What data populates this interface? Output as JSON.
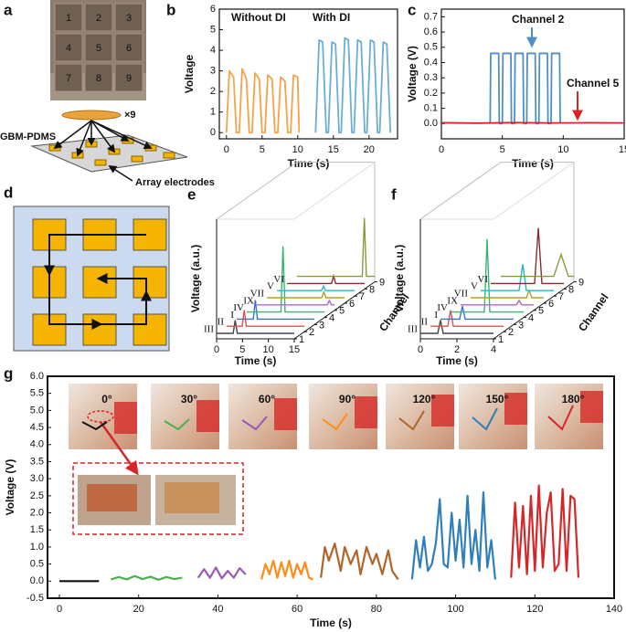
{
  "panel_labels": [
    "a",
    "b",
    "c",
    "d",
    "e",
    "f",
    "g"
  ],
  "panel_a": {
    "cells": [
      "1",
      "2",
      "3",
      "4",
      "5",
      "6",
      "7",
      "8",
      "9"
    ],
    "count": "×9",
    "film": "GBM-PDMS",
    "electrodes": "Array electrodes"
  },
  "chart_data": [
    {
      "type": "line",
      "xlabel": "Time (s)",
      "ylabel": "Voltage",
      "xlim": [
        -1,
        24
      ],
      "xticks": [
        0,
        5,
        10,
        15,
        20
      ],
      "ylim": [
        -0.3,
        6
      ],
      "yticks": [
        0,
        1,
        2,
        3,
        4,
        5,
        6
      ],
      "series": [
        {
          "name": "Without DI",
          "color": "#f5a24a",
          "x": [
            0,
            0.4,
            1.0,
            1.4,
            1.8,
            2.2,
            2.8,
            3.2,
            3.6,
            4.0,
            4.6,
            5.0,
            5.4,
            5.8,
            6.4,
            6.8,
            7.2,
            7.6,
            8.2,
            8.6,
            9.0,
            9.4,
            10.0,
            10.2
          ],
          "values": [
            0,
            3.0,
            2.7,
            0,
            0,
            3.1,
            2.6,
            0,
            0,
            2.9,
            2.6,
            0,
            0,
            2.8,
            2.6,
            0,
            0,
            2.7,
            2.5,
            0,
            0,
            2.8,
            2.7,
            0
          ]
        },
        {
          "name": "With DI",
          "color": "#6aaed6",
          "x": [
            12.5,
            13.0,
            13.5,
            14.0,
            14.3,
            14.8,
            15.3,
            15.8,
            16.1,
            16.6,
            17.1,
            17.6,
            17.9,
            18.4,
            18.9,
            19.4,
            19.7,
            20.2,
            20.7,
            21.2,
            21.5,
            22.0,
            22.5,
            23.0
          ],
          "values": [
            0,
            4.5,
            4.4,
            0,
            0,
            4.4,
            4.3,
            0,
            0,
            4.6,
            4.5,
            0,
            0,
            4.5,
            4.4,
            0,
            0,
            4.5,
            4.4,
            0,
            0,
            4.4,
            4.3,
            0
          ]
        }
      ]
    },
    {
      "type": "line",
      "xlabel": "Time (s)",
      "ylabel": "Voltage (V)",
      "xlim": [
        0,
        15
      ],
      "xticks": [
        0,
        5,
        10,
        15
      ],
      "ylim": [
        -0.1,
        0.75
      ],
      "yticks": [
        {
          "value": 0,
          "label": "0.0"
        },
        0.1,
        0.2,
        0.3,
        0.4,
        0.5,
        0.6,
        0.7
      ],
      "series": [
        {
          "name": "Channel 2",
          "color": "#4f8fc7",
          "x": [
            4.0,
            4.05,
            4.7,
            4.75,
            5.0,
            5.05,
            5.7,
            5.75,
            6.0,
            6.05,
            6.7,
            6.75,
            7.0,
            7.05,
            7.7,
            7.75,
            8.0,
            8.05,
            8.7,
            8.75,
            9.0,
            9.05,
            9.7,
            9.75
          ],
          "values": [
            0,
            0.46,
            0.46,
            0,
            0,
            0.46,
            0.46,
            0,
            0,
            0.46,
            0.46,
            0,
            0,
            0.46,
            0.46,
            0,
            0,
            0.46,
            0.46,
            0,
            0,
            0.46,
            0.46,
            0
          ]
        },
        {
          "name": "Channel 5",
          "color": "#d62728",
          "x": [
            0,
            3,
            6,
            9,
            12,
            15
          ],
          "values": [
            0.005,
            0.003,
            0.006,
            0.004,
            0.005,
            0.004
          ]
        }
      ]
    },
    {
      "type": "waterfall3d",
      "xlabel": "Time (s)",
      "ylabel": "Voltage (a.u.)",
      "zlabel": "Channel",
      "xlim": [
        0,
        15
      ],
      "xticks": [
        0,
        5,
        10,
        15
      ],
      "zticks": [
        1,
        2,
        3,
        4,
        5,
        6,
        7,
        8,
        9
      ],
      "series": [
        {
          "name": "III",
          "color": "#444444",
          "x": [
            0,
            3.2,
            3.6,
            4.0,
            15
          ],
          "values": [
            0,
            0,
            0.9,
            0,
            0
          ]
        },
        {
          "name": "II",
          "color": "#d9534f",
          "x": [
            0,
            3.0,
            3.4,
            3.8,
            15
          ],
          "values": [
            0,
            0,
            1.1,
            0,
            0
          ]
        },
        {
          "name": "I",
          "color": "#3a6fd8",
          "x": [
            0,
            3.2,
            3.6,
            4.0,
            15
          ],
          "values": [
            0,
            0,
            1.3,
            0,
            0
          ]
        },
        {
          "name": "IV",
          "color": "#3cb371",
          "x": [
            0,
            6.6,
            7.0,
            7.4,
            15
          ],
          "values": [
            0,
            0,
            4.5,
            0,
            0
          ]
        },
        {
          "name": "IX",
          "color": "#b266d6",
          "x": [
            0,
            13.6,
            14.0,
            14.4,
            15
          ],
          "values": [
            0,
            0,
            0.3,
            0,
            0
          ]
        },
        {
          "name": "VII",
          "color": "#b5a020",
          "x": [
            0,
            10.6,
            11.0,
            11.4,
            15
          ],
          "values": [
            0,
            0,
            0.4,
            0,
            0
          ]
        },
        {
          "name": "V",
          "color": "#22b8c8",
          "x": [
            0,
            8.6,
            9.0,
            9.4,
            15
          ],
          "values": [
            0,
            0,
            0.3,
            0,
            0
          ]
        },
        {
          "name": "VI",
          "color": "#8b2c2c",
          "x": [
            0,
            8.6,
            9.0,
            9.4,
            15
          ],
          "values": [
            0,
            0,
            0.5,
            0,
            0
          ]
        },
        {
          "name": null,
          "color": "#8a9a3a",
          "x": [
            0,
            12.6,
            13.0,
            13.4,
            15
          ],
          "values": [
            0,
            0,
            4.0,
            0,
            0
          ]
        }
      ]
    },
    {
      "type": "waterfall3d",
      "xlabel": "Time (s)",
      "ylabel": "Voltage (a.u.)",
      "zlabel": "Channel",
      "xlim": [
        0,
        4
      ],
      "xticks": [
        0,
        2,
        4
      ],
      "zticks": [
        1,
        2,
        3,
        4,
        5,
        6,
        7,
        8,
        9
      ],
      "series": [
        {
          "name": "III",
          "color": "#444444",
          "x": [
            0,
            0.95,
            1.1,
            1.25,
            4
          ],
          "values": [
            0,
            0,
            0.9,
            0,
            0
          ]
        },
        {
          "name": "II",
          "color": "#d9534f",
          "x": [
            0,
            0.95,
            1.1,
            1.25,
            4
          ],
          "values": [
            0,
            0,
            1.1,
            0,
            0
          ]
        },
        {
          "name": "I",
          "color": "#3a6fd8",
          "x": [
            0,
            1.05,
            1.2,
            1.35,
            4
          ],
          "values": [
            0,
            0,
            0.9,
            0,
            0
          ]
        },
        {
          "name": "IV",
          "color": "#3cb371",
          "x": [
            0,
            1.85,
            2.0,
            2.15,
            4
          ],
          "values": [
            0,
            0,
            5.0,
            0,
            0
          ]
        },
        {
          "name": "IX",
          "color": "#b266d6",
          "x": [
            0,
            3.05,
            3.2,
            3.35,
            4
          ],
          "values": [
            0,
            0,
            0.3,
            0,
            0
          ]
        },
        {
          "name": "VII",
          "color": "#b5a020",
          "x": [
            0,
            3.05,
            3.2,
            3.35,
            4
          ],
          "values": [
            0,
            0,
            0.5,
            0,
            0
          ]
        },
        {
          "name": "V",
          "color": "#22b8c8",
          "x": [
            0,
            2.1,
            2.3,
            2.5,
            4
          ],
          "values": [
            0,
            0,
            1.8,
            0,
            0
          ]
        },
        {
          "name": "VI",
          "color": "#8b2c2c",
          "x": [
            0,
            2.4,
            2.6,
            2.8,
            4
          ],
          "values": [
            0,
            0,
            3.8,
            0,
            0
          ]
        },
        {
          "name": null,
          "color": "#8a9a3a",
          "x": [
            0,
            2.9,
            3.3,
            3.7,
            4
          ],
          "values": [
            0,
            0,
            1.5,
            0,
            0
          ]
        }
      ]
    },
    {
      "type": "line",
      "xlabel": "Time (s)",
      "ylabel": "Voltage (V)",
      "xlim": [
        -3,
        140
      ],
      "xticks": [
        0,
        20,
        40,
        60,
        80,
        100,
        120,
        140
      ],
      "ylim": [
        -0.5,
        6
      ],
      "yticks": [
        -0.5,
        {
          "value": 0,
          "label": "0.0"
        },
        0.5,
        {
          "value": 1,
          "label": "1.0"
        },
        1.5,
        {
          "value": 2,
          "label": "2.0"
        },
        2.5,
        {
          "value": 3,
          "label": "3.0"
        },
        3.5,
        {
          "value": 4,
          "label": "4.0"
        },
        4.5,
        {
          "value": 5,
          "label": "5.0"
        },
        5.5,
        {
          "value": 6,
          "label": "6.0"
        }
      ],
      "series": [
        {
          "name": "0°",
          "color": "#111111",
          "x": [
            0,
            10
          ],
          "values": [
            0,
            0
          ]
        },
        {
          "name": "30°",
          "color": "#4caf50",
          "x": [
            13,
            15,
            17,
            19,
            21,
            23,
            25,
            27,
            29,
            31
          ],
          "values": [
            0.05,
            0.12,
            0.05,
            0.15,
            0.06,
            0.13,
            0.04,
            0.12,
            0.06,
            0.1
          ]
        },
        {
          "name": "60°",
          "color": "#9b59b6",
          "x": [
            35,
            36.5,
            38,
            39.5,
            41,
            42.5,
            44,
            45.5,
            47
          ],
          "values": [
            0.1,
            0.35,
            0.1,
            0.4,
            0.08,
            0.3,
            0.1,
            0.38,
            0.2
          ]
        },
        {
          "name": "90°",
          "color": "#ff8c1a",
          "x": [
            51,
            52,
            53,
            54,
            55,
            56,
            57,
            58,
            59,
            60,
            61,
            62,
            63,
            64
          ],
          "values": [
            0.05,
            0.5,
            0.2,
            0.6,
            0.1,
            0.55,
            0.15,
            0.6,
            0.1,
            0.5,
            0.2,
            0.55,
            0.1,
            0.05
          ]
        },
        {
          "name": "120°",
          "color": "#b0652a",
          "x": [
            66,
            67,
            68,
            69.5,
            71,
            72,
            73.5,
            75,
            76,
            77.5,
            79,
            80,
            81.5,
            83,
            84,
            85.5
          ],
          "values": [
            0.1,
            1.0,
            0.6,
            1.1,
            0.3,
            1.0,
            0.5,
            0.9,
            0.2,
            1.0,
            0.5,
            0.8,
            0.2,
            0.9,
            0.3,
            0.05
          ]
        },
        {
          "name": "150°",
          "color": "#2e7fba",
          "x": [
            89,
            90,
            91,
            92,
            93,
            94,
            95,
            96,
            97,
            98,
            99,
            100,
            101,
            102,
            103,
            104,
            105,
            106,
            107,
            108,
            109,
            110
          ],
          "values": [
            0.05,
            1.2,
            0.4,
            1.3,
            0.3,
            0.5,
            1.1,
            2.4,
            0.5,
            0.4,
            2.0,
            0.6,
            1.8,
            0.4,
            2.5,
            0.5,
            1.5,
            0.3,
            2.6,
            0.4,
            1.2,
            0.05
          ]
        },
        {
          "name": "180°",
          "color": "#d62728",
          "x": [
            114,
            115,
            116,
            117,
            118,
            119,
            120,
            121,
            122,
            123,
            124,
            125,
            126,
            127,
            128,
            129,
            130,
            131
          ],
          "values": [
            0.1,
            2.3,
            0.4,
            2.2,
            0.2,
            2.5,
            0.3,
            2.8,
            0.4,
            2.0,
            2.6,
            0.3,
            0.5,
            2.7,
            0.3,
            2.5,
            2.4,
            0.1
          ]
        }
      ]
    }
  ]
}
